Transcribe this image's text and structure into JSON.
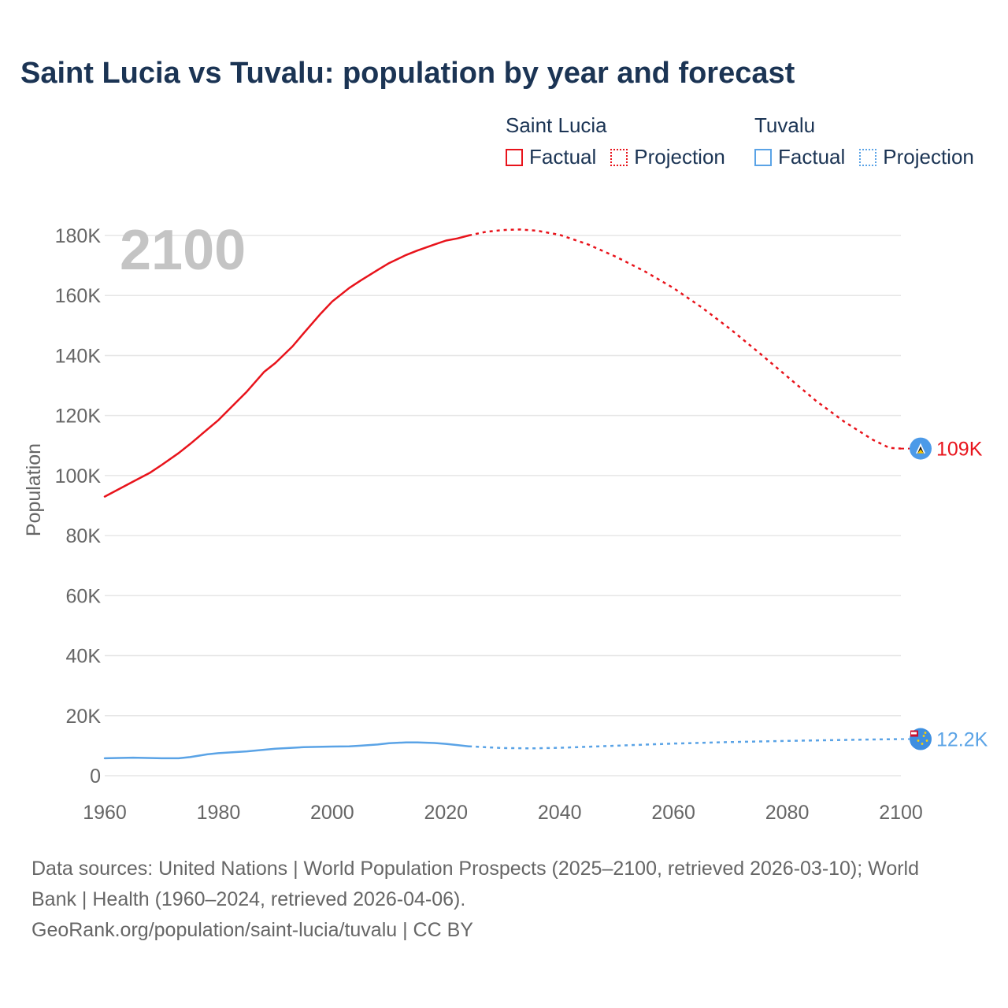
{
  "title": "Saint Lucia vs Tuvalu: population by year and forecast",
  "legend": {
    "groups": [
      {
        "name": "Saint Lucia",
        "color": "#e8131b",
        "factual_label": "Factual",
        "projection_label": "Projection"
      },
      {
        "name": "Tuvalu",
        "color": "#5aa3e6",
        "factual_label": "Factual",
        "projection_label": "Projection"
      }
    ]
  },
  "year_label": "2100",
  "footer": {
    "line1": "Data sources: United Nations | World Population Prospects (2025–2100, retrieved 2026-03-10); World",
    "line2": "Bank | Health (1960–2024, retrieved 2026-04-06).",
    "line3": "GeoRank.org/population/saint-lucia/tuvalu | CC BY"
  },
  "chart_data": {
    "type": "line",
    "title": "Saint Lucia vs Tuvalu: population by year and forecast",
    "xlabel": "",
    "ylabel": "Population",
    "xlim": [
      1960,
      2100
    ],
    "ylim": [
      0,
      180000
    ],
    "x_ticks": [
      1960,
      1980,
      2000,
      2020,
      2040,
      2060,
      2080,
      2100
    ],
    "y_ticks": [
      0,
      20000,
      40000,
      60000,
      80000,
      100000,
      120000,
      140000,
      160000,
      180000
    ],
    "y_tick_labels": [
      "0",
      "20K",
      "40K",
      "60K",
      "80K",
      "100K",
      "120K",
      "140K",
      "160K",
      "180K"
    ],
    "grid": true,
    "series": [
      {
        "name": "Saint Lucia",
        "color": "#e8131b",
        "end_label": "109K",
        "factual": {
          "x": [
            1960,
            1965,
            1968,
            1970,
            1973,
            1975,
            1980,
            1985,
            1988,
            1990,
            1993,
            1995,
            1998,
            2000,
            2003,
            2005,
            2008,
            2010,
            2013,
            2015,
            2018,
            2020,
            2022,
            2024
          ],
          "y": [
            93000,
            98000,
            101000,
            103500,
            107500,
            110500,
            118500,
            128000,
            134500,
            137500,
            143000,
            147500,
            154000,
            158000,
            162500,
            165000,
            168500,
            170800,
            173500,
            175000,
            177000,
            178300,
            179000,
            180000
          ]
        },
        "projection": {
          "x": [
            2024,
            2027,
            2030,
            2033,
            2036,
            2040,
            2045,
            2050,
            2055,
            2060,
            2065,
            2070,
            2075,
            2080,
            2085,
            2090,
            2095,
            2098,
            2100
          ],
          "y": [
            180000,
            181200,
            181800,
            182000,
            181600,
            180200,
            177000,
            172800,
            168000,
            162500,
            156000,
            148800,
            141000,
            133000,
            125000,
            118000,
            112000,
            109200,
            109000
          ]
        }
      },
      {
        "name": "Tuvalu",
        "color": "#5aa3e6",
        "end_label": "12.2K",
        "factual": {
          "x": [
            1960,
            1965,
            1970,
            1973,
            1975,
            1978,
            1980,
            1985,
            1990,
            1995,
            2000,
            2003,
            2005,
            2008,
            2010,
            2013,
            2015,
            2018,
            2020,
            2022,
            2024
          ],
          "y": [
            5800,
            6000,
            5800,
            5800,
            6200,
            7100,
            7500,
            8100,
            9000,
            9500,
            9700,
            9800,
            10000,
            10400,
            10800,
            11100,
            11100,
            10900,
            10600,
            10200,
            9800
          ]
        },
        "projection": {
          "x": [
            2024,
            2030,
            2035,
            2040,
            2050,
            2060,
            2070,
            2080,
            2090,
            2100
          ],
          "y": [
            9800,
            9200,
            9100,
            9300,
            10000,
            10700,
            11200,
            11600,
            11900,
            12200
          ]
        }
      }
    ]
  }
}
